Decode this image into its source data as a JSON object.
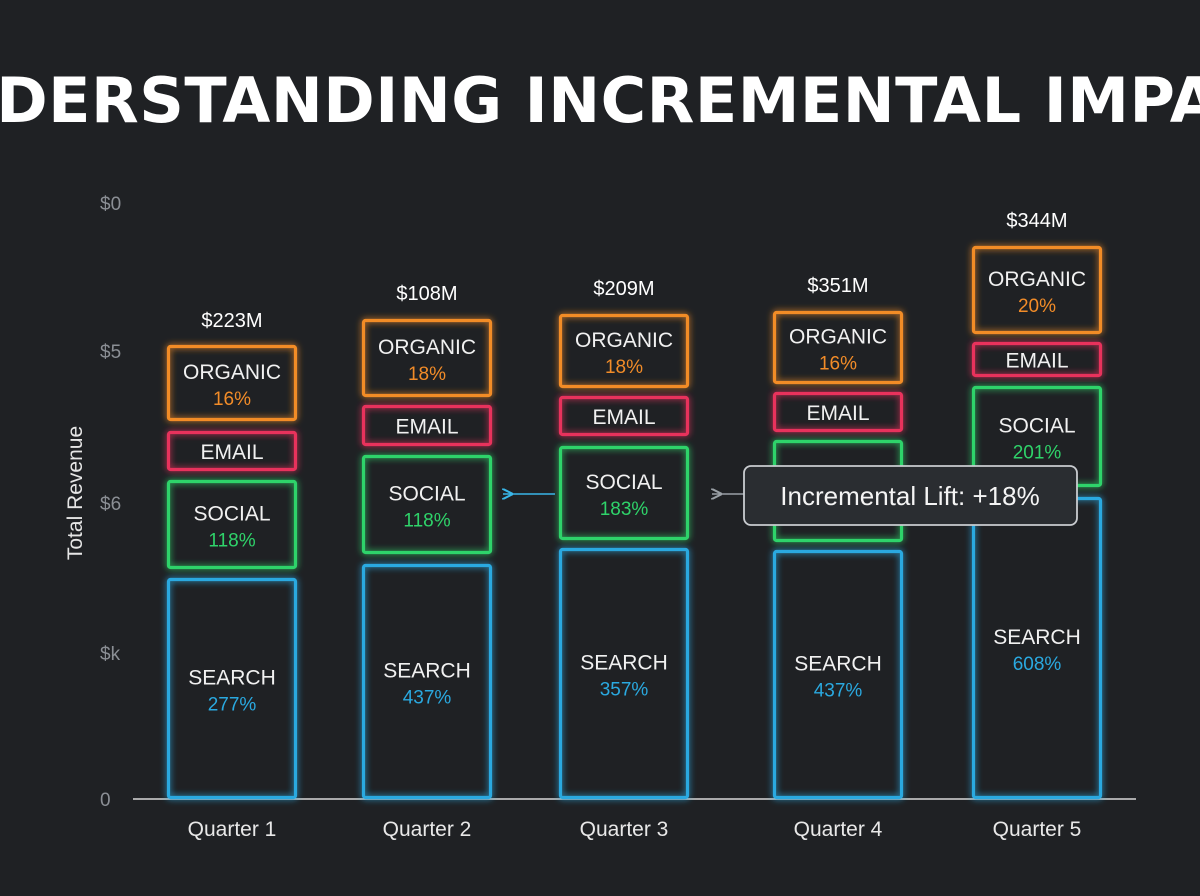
{
  "chart_data": {
    "type": "bar",
    "stacked": true,
    "title": "UNDERSTANDING INCREMENTAL IMPACT",
    "ylabel": "Total Revenue",
    "y_tick_labels": [
      "$0",
      "$5",
      "$6",
      "$k",
      "0"
    ],
    "categories": [
      "Quarter 1",
      "Quarter 2",
      "Quarter 3",
      "Quarter 4",
      "Quarter 5"
    ],
    "totals": [
      "$223M",
      "$108M",
      "$209M",
      "$351M",
      "$344M"
    ],
    "series": [
      {
        "name": "SEARCH",
        "color": "#2aa9e0",
        "values": [
          "277%",
          "437%",
          "357%",
          "437%",
          "608%"
        ]
      },
      {
        "name": "SOCIAL",
        "color": "#2fd36a",
        "values": [
          "118%",
          "118%",
          "183%",
          null,
          "201%"
        ]
      },
      {
        "name": "EMAIL",
        "color": "#e8335c",
        "values": [
          null,
          null,
          null,
          null,
          null
        ]
      },
      {
        "name": "ORGANIC",
        "color": "#f28c28",
        "values": [
          "16%",
          "18%",
          "18%",
          "16%",
          "20%"
        ]
      }
    ],
    "annotation": {
      "text": "Incremental Lift: +18%"
    },
    "grid": false
  }
}
